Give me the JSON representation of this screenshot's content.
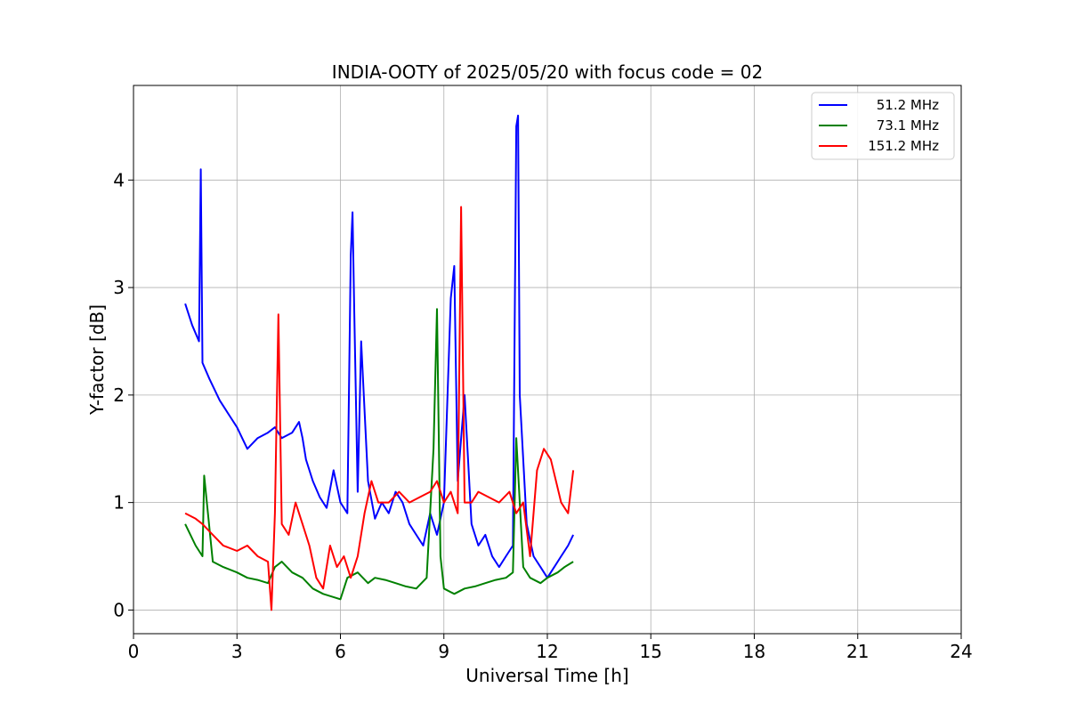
{
  "chart_data": {
    "type": "line",
    "title": "INDIA-OOTY of 2025/05/20 with focus code = 02",
    "xlabel": "Universal Time [h]",
    "ylabel": "Y-factor [dB]",
    "xlim": [
      0,
      24
    ],
    "ylim": [
      -0.22,
      4.88
    ],
    "xticks": [
      0,
      3,
      6,
      9,
      12,
      15,
      18,
      21,
      24
    ],
    "yticks": [
      0,
      1,
      2,
      3,
      4
    ],
    "grid": true,
    "legend_position": "top-right",
    "series": [
      {
        "name": "51.2 MHz",
        "color": "#0000ff",
        "x": [
          1.5,
          1.7,
          1.9,
          1.95,
          2.0,
          2.2,
          2.5,
          2.8,
          3.0,
          3.3,
          3.6,
          3.9,
          4.1,
          4.3,
          4.6,
          4.8,
          4.9,
          5.0,
          5.2,
          5.4,
          5.6,
          5.8,
          6.0,
          6.2,
          6.3,
          6.35,
          6.4,
          6.5,
          6.6,
          6.8,
          7.0,
          7.2,
          7.4,
          7.6,
          7.8,
          8.0,
          8.2,
          8.4,
          8.6,
          8.8,
          9.0,
          9.2,
          9.3,
          9.4,
          9.6,
          9.8,
          10.0,
          10.2,
          10.4,
          10.6,
          10.8,
          11.0,
          11.1,
          11.15,
          11.2,
          11.4,
          11.6,
          11.8,
          12.0,
          12.2,
          12.4,
          12.6,
          12.75
        ],
        "y": [
          2.85,
          2.65,
          2.5,
          4.1,
          2.3,
          2.15,
          1.95,
          1.8,
          1.7,
          1.5,
          1.6,
          1.65,
          1.7,
          1.6,
          1.65,
          1.75,
          1.6,
          1.4,
          1.2,
          1.05,
          0.95,
          1.3,
          1.0,
          0.9,
          3.3,
          3.7,
          2.8,
          1.1,
          2.5,
          1.2,
          0.85,
          1.0,
          0.9,
          1.1,
          1.0,
          0.8,
          0.7,
          0.6,
          0.9,
          0.7,
          1.0,
          2.9,
          3.2,
          1.2,
          2.0,
          0.8,
          0.6,
          0.7,
          0.5,
          0.4,
          0.5,
          0.6,
          4.5,
          4.6,
          2.0,
          0.8,
          0.5,
          0.4,
          0.3,
          0.4,
          0.5,
          0.6,
          0.7
        ]
      },
      {
        "name": "73.1 MHz",
        "color": "#008000",
        "x": [
          1.5,
          1.8,
          2.0,
          2.05,
          2.3,
          2.6,
          3.0,
          3.3,
          3.6,
          3.9,
          4.1,
          4.3,
          4.6,
          4.9,
          5.2,
          5.5,
          5.8,
          6.0,
          6.2,
          6.5,
          6.8,
          7.0,
          7.3,
          7.6,
          7.9,
          8.2,
          8.5,
          8.7,
          8.8,
          8.9,
          9.0,
          9.3,
          9.6,
          9.9,
          10.2,
          10.5,
          10.8,
          11.0,
          11.1,
          11.3,
          11.5,
          11.8,
          12.0,
          12.3,
          12.5,
          12.75
        ],
        "y": [
          0.8,
          0.6,
          0.5,
          1.25,
          0.45,
          0.4,
          0.35,
          0.3,
          0.28,
          0.25,
          0.4,
          0.45,
          0.35,
          0.3,
          0.2,
          0.15,
          0.12,
          0.1,
          0.3,
          0.35,
          0.25,
          0.3,
          0.28,
          0.25,
          0.22,
          0.2,
          0.3,
          1.5,
          2.8,
          0.5,
          0.2,
          0.15,
          0.2,
          0.22,
          0.25,
          0.28,
          0.3,
          0.35,
          1.6,
          0.4,
          0.3,
          0.25,
          0.3,
          0.35,
          0.4,
          0.45
        ]
      },
      {
        "name": "151.2 MHz",
        "color": "#ff0000",
        "x": [
          1.5,
          1.8,
          2.0,
          2.3,
          2.6,
          3.0,
          3.3,
          3.6,
          3.9,
          4.0,
          4.1,
          4.2,
          4.3,
          4.5,
          4.7,
          4.9,
          5.1,
          5.3,
          5.5,
          5.7,
          5.9,
          6.1,
          6.3,
          6.5,
          6.7,
          6.9,
          7.1,
          7.4,
          7.7,
          8.0,
          8.3,
          8.6,
          8.8,
          9.0,
          9.2,
          9.4,
          9.5,
          9.6,
          9.8,
          10.0,
          10.3,
          10.6,
          10.9,
          11.1,
          11.3,
          11.5,
          11.7,
          11.9,
          12.1,
          12.4,
          12.6,
          12.75
        ],
        "y": [
          0.9,
          0.85,
          0.8,
          0.7,
          0.6,
          0.55,
          0.6,
          0.5,
          0.45,
          0.0,
          0.9,
          2.75,
          0.8,
          0.7,
          1.0,
          0.8,
          0.6,
          0.3,
          0.2,
          0.6,
          0.4,
          0.5,
          0.3,
          0.5,
          0.9,
          1.2,
          1.0,
          1.0,
          1.1,
          1.0,
          1.05,
          1.1,
          1.2,
          1.0,
          1.1,
          0.9,
          3.75,
          1.0,
          1.0,
          1.1,
          1.05,
          1.0,
          1.1,
          0.9,
          1.0,
          0.5,
          1.3,
          1.5,
          1.4,
          1.0,
          0.9,
          1.3
        ]
      }
    ]
  }
}
